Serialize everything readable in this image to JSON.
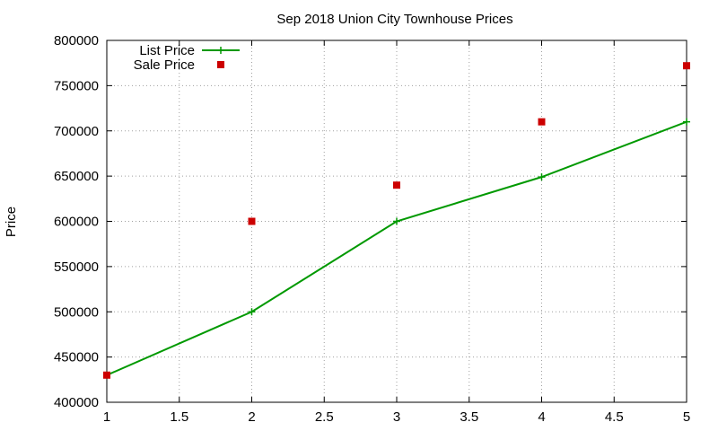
{
  "chart_data": {
    "type": "line",
    "title": "Sep 2018 Union City Townhouse Prices",
    "xlabel": "",
    "ylabel": "Price",
    "xlim": [
      1,
      5
    ],
    "ylim": [
      400000,
      800000
    ],
    "xticks": [
      1,
      1.5,
      2,
      2.5,
      3,
      3.5,
      4,
      4.5,
      5
    ],
    "xtick_labels": [
      "1",
      "1.5",
      "2",
      "2.5",
      "3",
      "3.5",
      "4",
      "4.5",
      "5"
    ],
    "yticks": [
      400000,
      450000,
      500000,
      550000,
      600000,
      650000,
      700000,
      750000,
      800000
    ],
    "ytick_labels": [
      "400000",
      "450000",
      "500000",
      "550000",
      "600000",
      "650000",
      "700000",
      "750000",
      "800000"
    ],
    "grid": true,
    "legend_position": "top-left",
    "series": [
      {
        "name": "List Price",
        "style": "line-with-plus-markers",
        "color": "#009900",
        "x": [
          1,
          2,
          3,
          4,
          5
        ],
        "y": [
          430000,
          500000,
          600000,
          649000,
          710000
        ]
      },
      {
        "name": "Sale Price",
        "style": "square-markers",
        "color": "#cc0000",
        "x": [
          1,
          2,
          3,
          4,
          5
        ],
        "y": [
          430000,
          600000,
          640000,
          710000,
          772000
        ]
      }
    ]
  }
}
